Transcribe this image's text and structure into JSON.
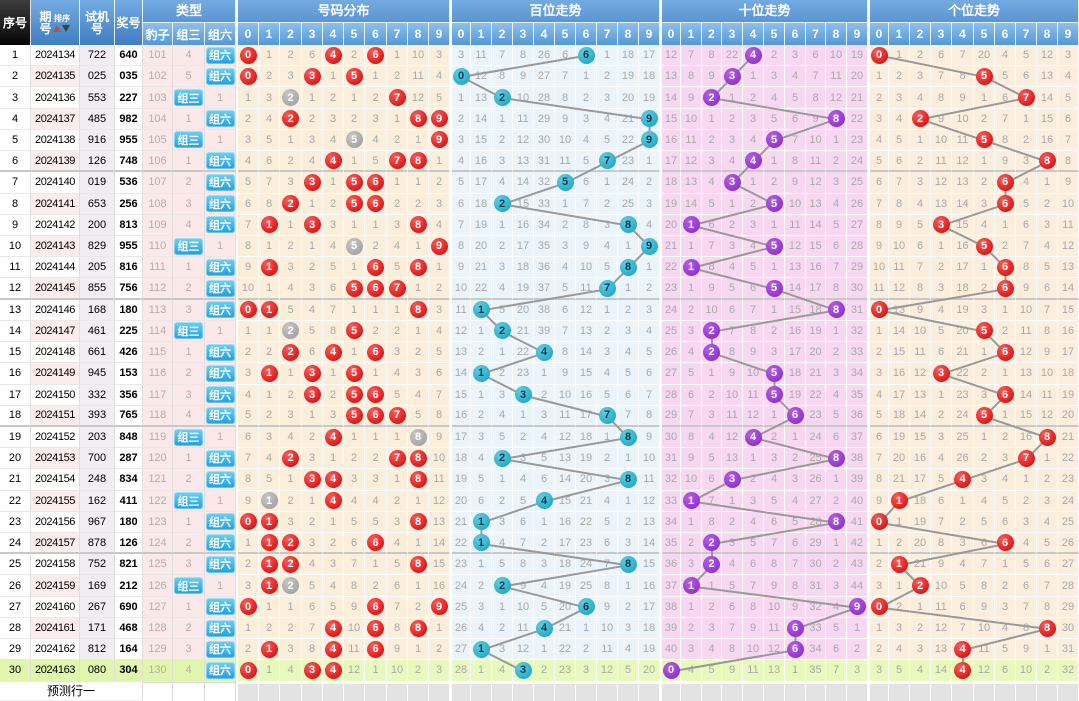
{
  "header": {
    "serial": "序号",
    "issue": "期号",
    "sort": "排序",
    "test": "试机号",
    "prize": "奖号",
    "type": "类型",
    "leopard": "豹子",
    "group3": "组三",
    "group6": "组六",
    "digits": [
      "0",
      "1",
      "2",
      "3",
      "4",
      "5",
      "6",
      "7",
      "8",
      "9"
    ],
    "sections": {
      "dist": "号码分布",
      "hundreds": "百位走势",
      "tens": "十位走势",
      "units": "个位走势"
    }
  },
  "footer": {
    "predict_label": "预测行一"
  },
  "chart_data": {
    "type": "table",
    "rows": [
      [
        1,
        "2024134",
        "722",
        "640"
      ],
      [
        2,
        "2024135",
        "025",
        "035"
      ],
      [
        3,
        "2024136",
        "553",
        "227"
      ],
      [
        4,
        "2024137",
        "485",
        "982"
      ],
      [
        5,
        "2024138",
        "916",
        "955"
      ],
      [
        6,
        "2024139",
        "126",
        "748"
      ],
      [
        7,
        "2024140",
        "019",
        "536"
      ],
      [
        8,
        "2024141",
        "653",
        "256"
      ],
      [
        9,
        "2024142",
        "200",
        "813"
      ],
      [
        10,
        "2024143",
        "829",
        "955"
      ],
      [
        11,
        "2024144",
        "205",
        "816"
      ],
      [
        12,
        "2024145",
        "855",
        "756"
      ],
      [
        13,
        "2024146",
        "168",
        "180"
      ],
      [
        14,
        "2024147",
        "461",
        "225"
      ],
      [
        15,
        "2024148",
        "661",
        "426"
      ],
      [
        16,
        "2024149",
        "945",
        "153"
      ],
      [
        17,
        "2024150",
        "332",
        "356"
      ],
      [
        18,
        "2024151",
        "393",
        "765"
      ],
      [
        19,
        "2024152",
        "203",
        "848"
      ],
      [
        20,
        "2024153",
        "700",
        "287"
      ],
      [
        21,
        "2024154",
        "248",
        "834"
      ],
      [
        22,
        "2024155",
        "162",
        "411"
      ],
      [
        23,
        "2024156",
        "967",
        "180"
      ],
      [
        24,
        "2024157",
        "878",
        "126"
      ],
      [
        25,
        "2024158",
        "752",
        "821"
      ],
      [
        26,
        "2024159",
        "169",
        "212"
      ],
      [
        27,
        "2024160",
        "267",
        "690"
      ],
      [
        28,
        "2024161",
        "171",
        "468"
      ],
      [
        29,
        "2024162",
        "812",
        "164"
      ],
      [
        30,
        "2024163",
        "080",
        "304"
      ]
    ],
    "leopard_start": 101,
    "group3_first_miss": 4,
    "initial_miss": {
      "dist": [
        0,
        1,
        2,
        6,
        0,
        2,
        0,
        1,
        10,
        3
      ],
      "hundreds": [
        3,
        11,
        7,
        8,
        26,
        6,
        0,
        1,
        18,
        17
      ],
      "tens": [
        12,
        7,
        8,
        22,
        0,
        2,
        3,
        6,
        10,
        19
      ],
      "units": [
        0,
        1,
        2,
        6,
        7,
        20,
        4,
        5,
        12,
        3
      ]
    },
    "colors": {
      "red_circle": "#d00000",
      "gray_dup_circle": "#9a9a9a",
      "teal_circle": "#149ec0",
      "purple_circle": "#8822c4",
      "trend_line": "#999999",
      "green_row": "#e8f9bd",
      "dist_bg": "#fbeeda",
      "hundreds_bg": "#ebf4fa",
      "tens_bg": "#f7d8f0",
      "units_bg": "#fbeedd",
      "header_blue": "#3f7ec2"
    }
  }
}
